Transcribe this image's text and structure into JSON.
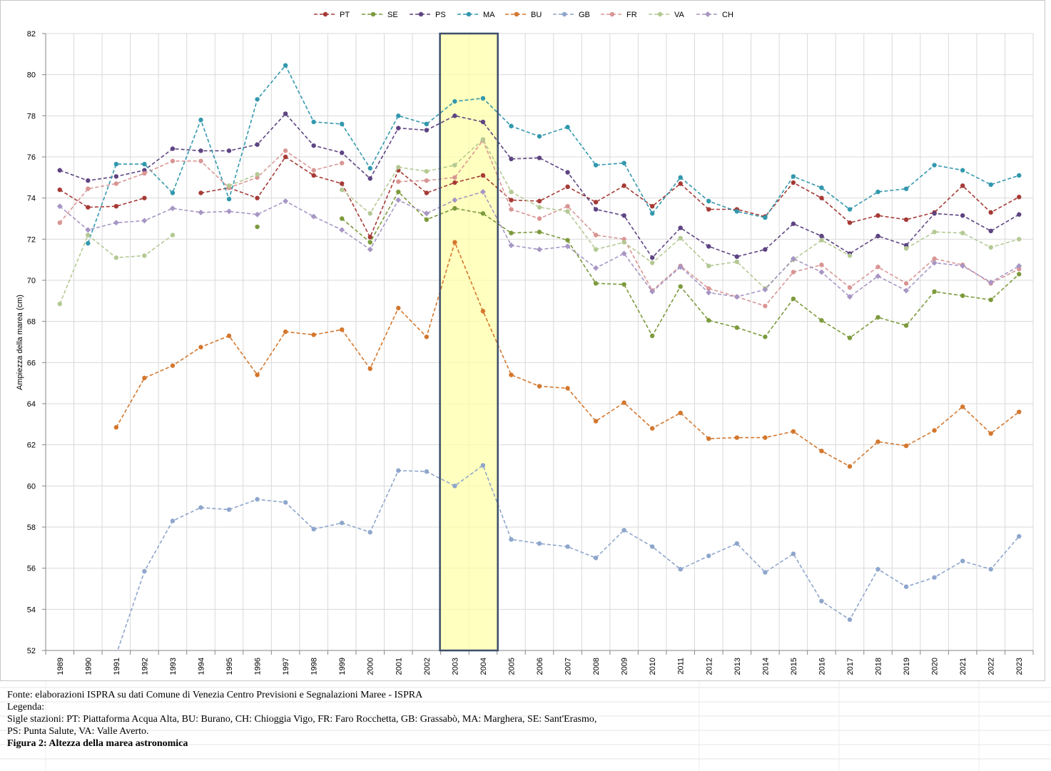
{
  "chart_data": {
    "type": "line",
    "ylabel": "Ampiezza della marea (cm)",
    "xlabel": "",
    "ylim": [
      52,
      82
    ],
    "yticks": [
      52,
      54,
      56,
      58,
      60,
      62,
      64,
      66,
      68,
      70,
      72,
      74,
      76,
      78,
      80,
      82
    ],
    "grid": true,
    "legend_position": "top",
    "x": [
      "1989",
      "1990",
      "1991",
      "1992",
      "1993",
      "1994",
      "1995",
      "1996",
      "1997",
      "1998",
      "1999",
      "2000",
      "2001",
      "2002",
      "2003",
      "2004",
      "2005",
      "2006",
      "2007",
      "2008",
      "2009",
      "2010",
      "2011",
      "2012",
      "2013",
      "2014",
      "2015",
      "2016",
      "2017",
      "2018",
      "2019",
      "2020",
      "2021",
      "2022",
      "2023"
    ],
    "highlight": {
      "from": "2003",
      "to": "2004",
      "fill": "#ffffa6",
      "stroke": "#3b4e6b"
    },
    "series": [
      {
        "name": "PT",
        "color": "#a63a36",
        "marker": "circle",
        "values": [
          74.4,
          73.55,
          73.6,
          74.0,
          null,
          74.25,
          74.5,
          74.0,
          76.0,
          75.1,
          74.7,
          72.1,
          75.35,
          74.25,
          74.75,
          75.1,
          73.9,
          73.85,
          74.55,
          73.8,
          74.6,
          73.6,
          74.7,
          73.45,
          73.45,
          73.1,
          74.75,
          74.0,
          72.8,
          73.15,
          72.95,
          73.3,
          74.6,
          73.3,
          74.05
        ]
      },
      {
        "name": "SE",
        "color": "#7c9a3c",
        "marker": "circle",
        "values": [
          null,
          null,
          null,
          null,
          null,
          null,
          null,
          72.6,
          null,
          null,
          73.0,
          71.85,
          74.3,
          72.95,
          73.5,
          73.25,
          72.3,
          72.35,
          71.95,
          69.85,
          69.8,
          67.3,
          69.7,
          68.05,
          67.7,
          67.25,
          69.1,
          68.05,
          67.2,
          68.2,
          67.8,
          69.45,
          69.25,
          69.05,
          70.3
        ]
      },
      {
        "name": "PS",
        "color": "#5e4482",
        "marker": "circle",
        "values": [
          75.35,
          74.85,
          75.05,
          75.35,
          76.4,
          76.3,
          76.3,
          76.6,
          78.1,
          76.55,
          76.2,
          74.95,
          77.4,
          77.3,
          78.0,
          77.7,
          75.9,
          75.95,
          75.25,
          73.45,
          73.15,
          71.1,
          72.55,
          71.65,
          71.15,
          71.5,
          72.75,
          72.15,
          71.3,
          72.15,
          71.7,
          73.25,
          73.15,
          72.4,
          73.2
        ]
      },
      {
        "name": "MA",
        "color": "#3298ad",
        "marker": "circle",
        "values": [
          null,
          71.8,
          75.65,
          75.65,
          74.25,
          77.8,
          73.95,
          78.8,
          80.45,
          77.7,
          77.6,
          75.45,
          78.0,
          77.6,
          78.7,
          78.85,
          77.5,
          77.0,
          77.45,
          75.6,
          75.7,
          73.25,
          75.0,
          73.85,
          73.35,
          73.05,
          75.05,
          74.5,
          73.45,
          74.3,
          74.45,
          75.6,
          75.35,
          74.65,
          75.1
        ]
      },
      {
        "name": "BU",
        "color": "#d3772e",
        "marker": "circle",
        "values": [
          null,
          null,
          62.85,
          65.25,
          65.85,
          66.75,
          67.3,
          65.4,
          67.5,
          67.35,
          67.6,
          65.7,
          68.65,
          67.25,
          71.85,
          68.5,
          65.4,
          64.85,
          64.75,
          63.15,
          64.05,
          62.8,
          63.55,
          62.3,
          62.35,
          62.35,
          62.65,
          61.7,
          60.95,
          62.15,
          61.95,
          62.7,
          63.85,
          62.55,
          63.6
        ]
      },
      {
        "name": "GB",
        "color": "#8ea6cc",
        "marker": "circle",
        "values": [
          null,
          null,
          51.8,
          55.85,
          58.3,
          58.95,
          58.85,
          59.35,
          59.2,
          57.9,
          58.2,
          57.75,
          60.75,
          60.7,
          60.0,
          61.0,
          57.4,
          57.2,
          57.05,
          56.5,
          57.85,
          57.05,
          55.95,
          56.6,
          57.2,
          55.8,
          56.7,
          54.4,
          53.5,
          55.95,
          55.1,
          55.55,
          56.35,
          55.95,
          57.55
        ]
      },
      {
        "name": "FR",
        "color": "#d99594",
        "marker": "circle",
        "values": [
          72.8,
          74.45,
          74.7,
          75.2,
          75.8,
          75.8,
          74.5,
          75.0,
          76.3,
          75.35,
          75.7,
          null,
          74.8,
          74.85,
          75.0,
          76.8,
          73.45,
          73.0,
          73.6,
          72.2,
          72.0,
          69.5,
          70.7,
          69.6,
          69.2,
          68.75,
          70.4,
          70.75,
          69.65,
          70.65,
          69.85,
          71.05,
          70.75,
          69.85,
          70.55
        ]
      },
      {
        "name": "VA",
        "color": "#b4c993",
        "marker": "circle",
        "values": [
          68.85,
          72.2,
          71.1,
          71.2,
          72.2,
          null,
          74.6,
          75.15,
          null,
          null,
          74.4,
          73.25,
          75.5,
          75.3,
          75.6,
          76.85,
          74.3,
          73.55,
          73.35,
          71.5,
          71.85,
          70.85,
          72.05,
          70.7,
          70.9,
          69.6,
          71.0,
          71.95,
          71.2,
          null,
          71.55,
          72.35,
          72.3,
          71.6,
          72.0
        ]
      },
      {
        "name": "CH",
        "color": "#a796c4",
        "marker": "diamond",
        "values": [
          73.6,
          72.45,
          72.8,
          72.9,
          73.5,
          73.3,
          73.35,
          73.2,
          73.85,
          73.1,
          72.45,
          71.5,
          73.9,
          73.25,
          73.9,
          74.3,
          71.7,
          71.5,
          71.65,
          70.6,
          71.3,
          69.45,
          70.65,
          69.4,
          69.2,
          69.55,
          71.05,
          70.4,
          69.2,
          70.2,
          69.5,
          70.85,
          70.7,
          69.9,
          70.7
        ]
      }
    ]
  },
  "caption": {
    "line1": "Fonte: elaborazioni  ISPRA su dati Comune di Venezia Centro Previsioni  e Segnalazioni  Maree - ISPRA",
    "line2": "Legenda:",
    "line3": "Sigle  stazioni:  PT: Piattaforma Acqua Alta, BU: Burano, CH: Chioggia  Vigo, FR: Faro Rocchetta, GB: Grassabò, MA: Marghera, SE:  Sant'Erasmo,",
    "line4": "PS: Punta Salute,  VA: Valle Averto.",
    "line5": "Figura 2: Altezza della marea astronomica"
  }
}
